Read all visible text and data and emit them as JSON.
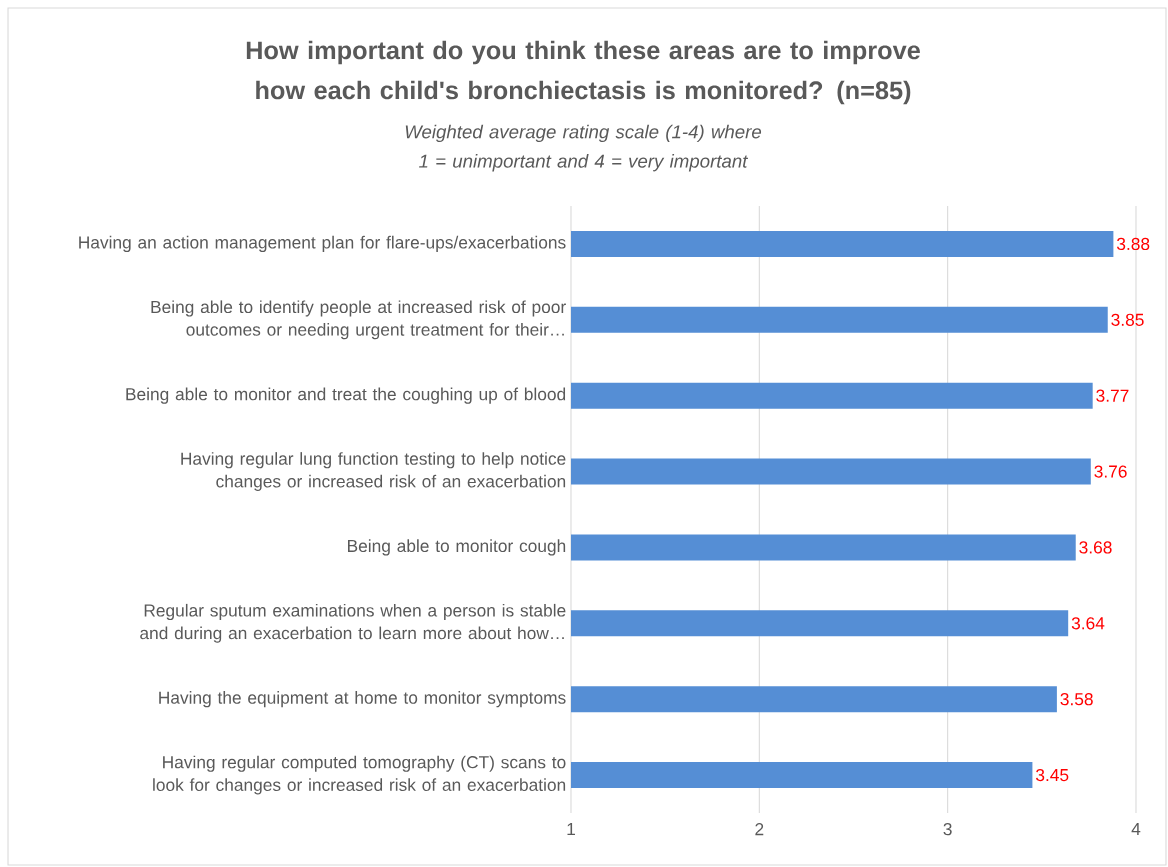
{
  "chart_data": {
    "type": "bar",
    "orientation": "horizontal",
    "title": "How important do you think these areas are to improve how each child's bronchiectasis is monitored? (n=85)",
    "subtitle": "Weighted average rating scale (1-4) where 1 = unimportant and 4 = very important",
    "categories": [
      "Having an action management plan for flare-ups/exacerbations",
      "Being able to identify people at increased risk of poor outcomes or needing urgent treatment for their…",
      "Being able to monitor and treat the coughing up of blood",
      "Having regular lung function testing to help notice changes or increased risk of an exacerbation",
      "Being able to monitor cough",
      "Regular sputum examinations when a person is stable and during an exacerbation to learn more about how…",
      "Having the equipment at home to monitor symptoms",
      "Having regular computed tomography (CT) scans to look for changes or increased risk of an exacerbation"
    ],
    "values": [
      3.88,
      3.85,
      3.77,
      3.76,
      3.68,
      3.64,
      3.58,
      3.45
    ],
    "color": "#558ed5",
    "xlim": [
      1,
      4
    ],
    "xticks": [
      1,
      2,
      3,
      4
    ],
    "grid": "x",
    "data_labels": true
  }
}
